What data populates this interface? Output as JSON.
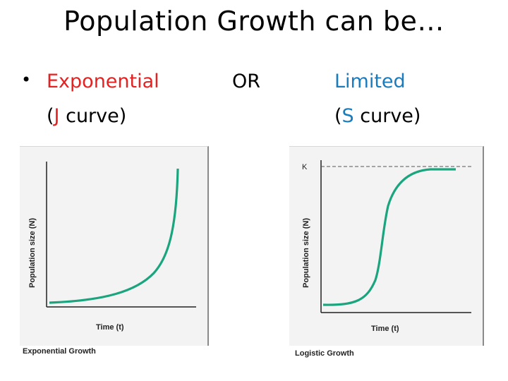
{
  "title": "Population Growth can be…",
  "left_heading": {
    "bullet": "•",
    "word": "Exponential",
    "sub_open": "(",
    "sub_letter": "J",
    "sub_rest": " curve)"
  },
  "or_text": "OR",
  "right_heading": {
    "word": "Limited",
    "sub_open": "(",
    "sub_letter": "S",
    "sub_rest": " curve)"
  },
  "colors": {
    "accent_red": "#e52222",
    "accent_blue": "#1a7bbd",
    "curve": "#1aa57f",
    "panel_bg": "#f3f3f3"
  },
  "exponential_graph": {
    "y_label": "Population size (N)",
    "x_label": "Time (t)",
    "caption": "Exponential Growth"
  },
  "logistic_graph": {
    "y_label": "Population size (N)",
    "x_label": "Time (t)",
    "caption": "Logistic Growth",
    "k_label": "K"
  }
}
